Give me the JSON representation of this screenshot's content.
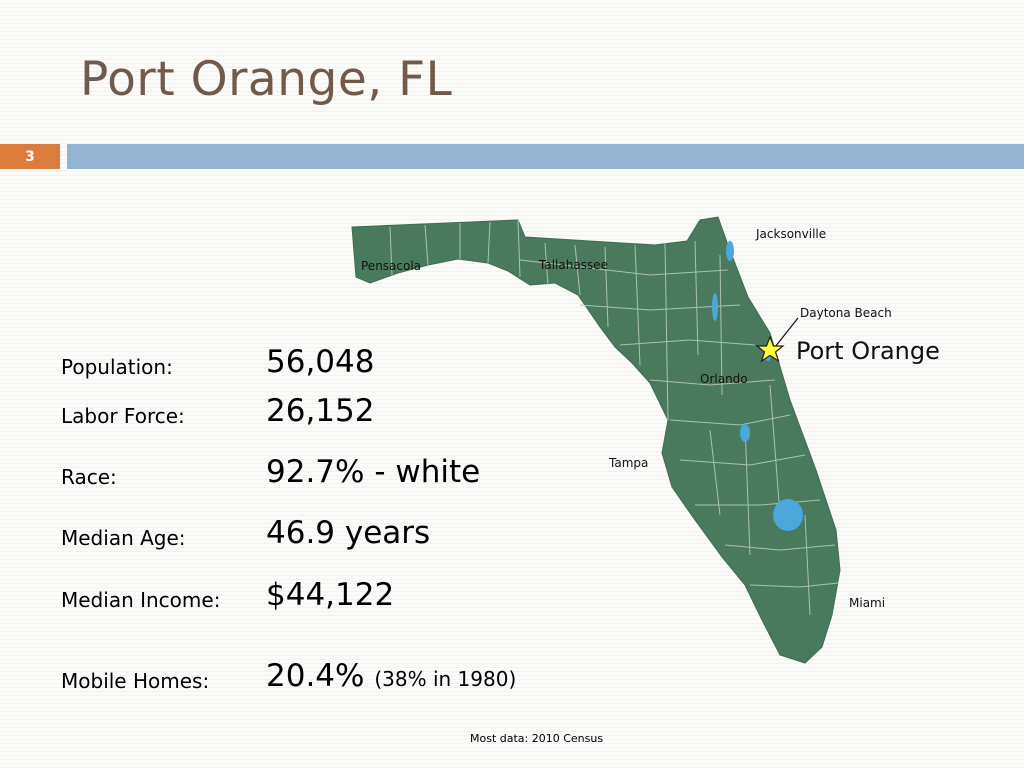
{
  "slide": {
    "title": "Port Orange, FL",
    "number": "3"
  },
  "map": {
    "cities": {
      "jacksonville": "Jacksonville",
      "pensacola": "Pensacola",
      "tallahassee": "Tallahassee",
      "daytona_beach": "Daytona Beach",
      "port_orange": "Port Orange",
      "orlando": "Orlando",
      "tampa": "Tampa",
      "miami": "Miami"
    },
    "colors": {
      "land": "#4a7a5e",
      "county_lines": "#a9c2b0",
      "water": "#4aa8dc",
      "star": "#ffff33"
    }
  },
  "stats": [
    {
      "label": "Population:",
      "value": "56,048",
      "note": ""
    },
    {
      "label": "Labor Force:",
      "value": "26,152",
      "note": ""
    },
    {
      "label": "Race:",
      "value": "92.7% - white",
      "note": ""
    },
    {
      "label": "Median Age:",
      "value": "46.9 years",
      "note": ""
    },
    {
      "label": "Median Income:",
      "value": "$44,122",
      "note": ""
    },
    {
      "label": "Mobile Homes:",
      "value": "20.4%",
      "note": "(38% in 1980)"
    }
  ],
  "footnote": "Most data: 2010 Census",
  "colors": {
    "title": "#6f5a4c",
    "slide_number_bg": "#dc7c3c",
    "header_bar": "#95b4d3"
  }
}
